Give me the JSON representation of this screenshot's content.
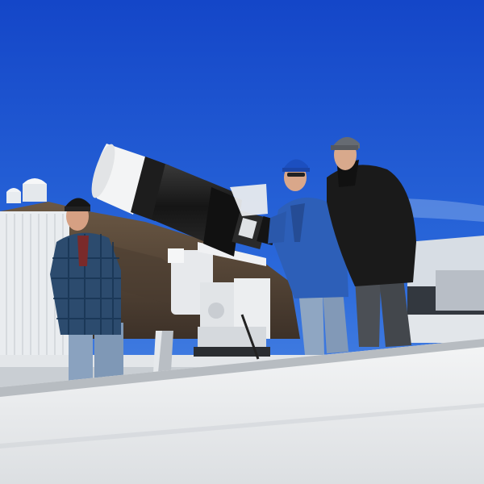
{
  "scene": {
    "type": "photograph",
    "subject": "three-people-with-telescope-on-observatory-roof",
    "colors": {
      "sky_top": "#1347c9",
      "sky_bottom": "#4b86e6",
      "hill": "#5a4a3a",
      "roof": "#eef0f2",
      "telescope_tube": "#1b1b1b",
      "dew_shield": "#f3f3f3",
      "mount": "#e6e8ea",
      "jacket_blue": "#2d5fb8",
      "jacket_black": "#1a1a1a",
      "plaid_shirt": "#2b4a6b"
    }
  }
}
